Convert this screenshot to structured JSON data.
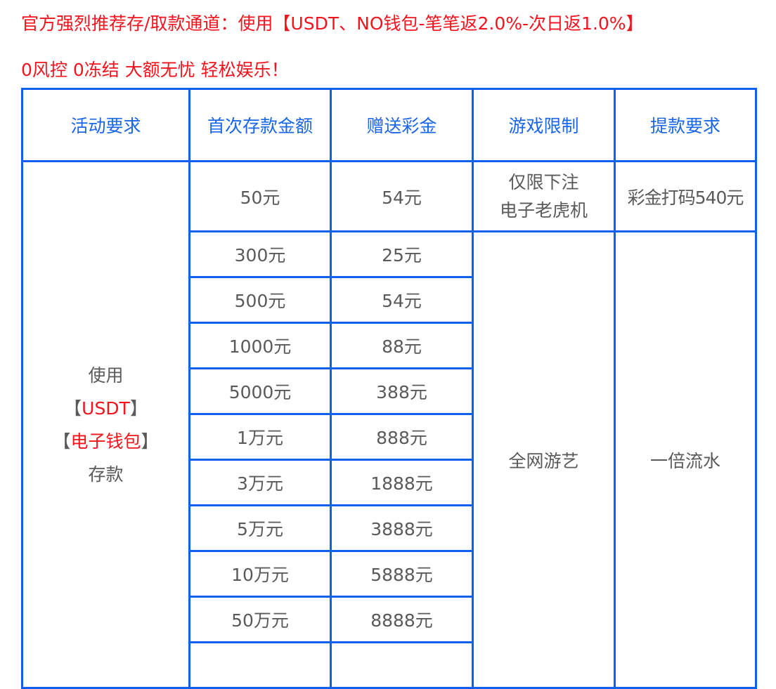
{
  "notice": {
    "line1": "官方强烈推荐存/取款通道：使用【USDT、NO钱包-笔笔返2.0%-次日返1.0%】",
    "line2": "0风控 0冻结 大额无忧 轻松娱乐！"
  },
  "colors": {
    "border": "#0f5ff0",
    "header_text": "#1a66e8",
    "highlight": "#f5141e",
    "body_text": "#5a5a5a"
  },
  "table": {
    "headers": [
      "活动要求",
      "首次存款金额",
      "赠送彩金",
      "游戏限制",
      "提款要求"
    ],
    "activity": {
      "line1": "使用",
      "usdt_open": "【",
      "usdt": "USDT",
      "usdt_close": "】",
      "wallet_open": "【",
      "wallet": "电子钱包",
      "wallet_close": "】",
      "line4": "存款"
    },
    "first_row": {
      "deposit": "50元",
      "bonus": "54元",
      "game_line1": "仅限下注",
      "game_line2": "电子老虎机",
      "withdraw": "彩金打码540元"
    },
    "rows": [
      {
        "deposit": "300元",
        "bonus": "25元"
      },
      {
        "deposit": "500元",
        "bonus": "54元"
      },
      {
        "deposit": "1000元",
        "bonus": "88元"
      },
      {
        "deposit": "5000元",
        "bonus": "388元"
      },
      {
        "deposit": "1万元",
        "bonus": "888元"
      },
      {
        "deposit": "3万元",
        "bonus": "1888元"
      },
      {
        "deposit": "5万元",
        "bonus": "3888元"
      },
      {
        "deposit": "10万元",
        "bonus": "5888元"
      },
      {
        "deposit": "50万元",
        "bonus": "8888元"
      }
    ],
    "game_rest": "全网游艺",
    "withdraw_rest": "一倍流水"
  }
}
